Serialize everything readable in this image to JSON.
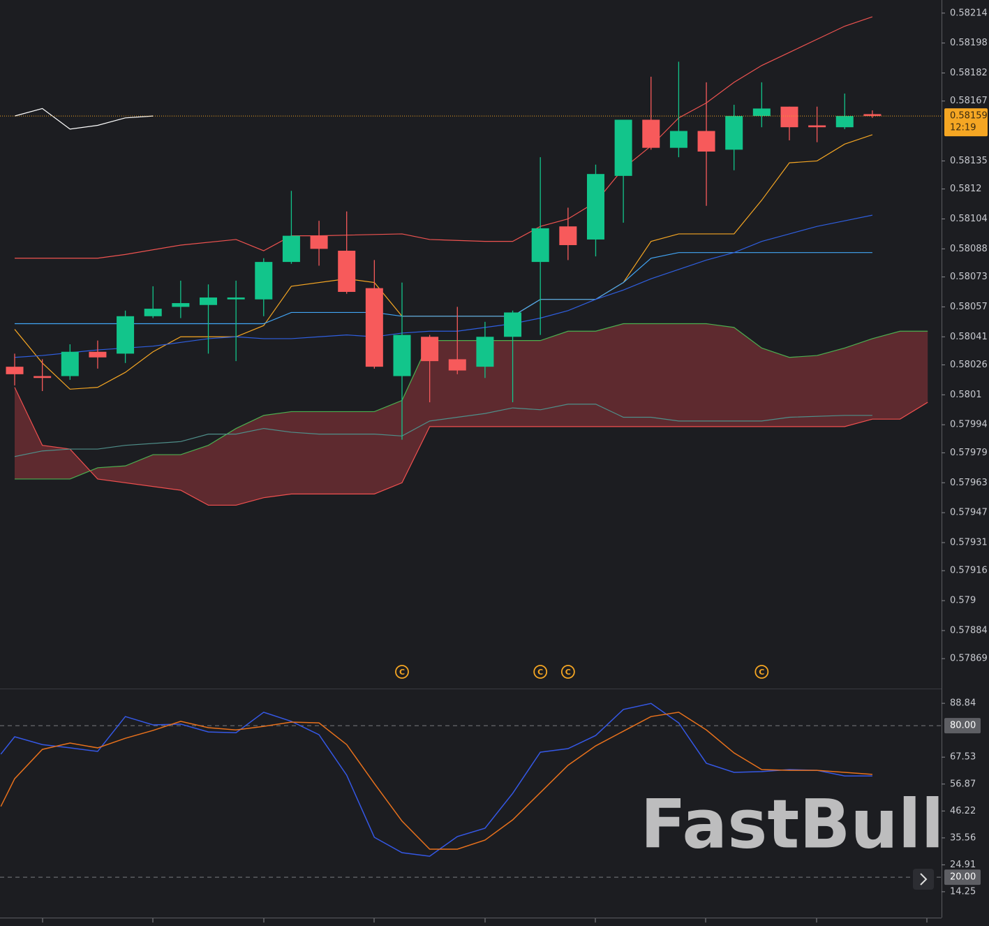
{
  "watermark": "FastBull",
  "chart_data": [
    {
      "type": "candlestick",
      "xlim": [
        -0.53,
        33.5
      ],
      "ylim": [
        0.57853,
        0.58221
      ],
      "yticks": [
        0.58214,
        0.58198,
        0.58182,
        0.58167,
        0.58135,
        0.5812,
        0.58104,
        0.58088,
        0.58073,
        0.58057,
        0.58041,
        0.58026,
        0.5801,
        0.57994,
        0.57979,
        0.57963,
        0.57947,
        0.57931,
        0.57916,
        0.579,
        0.57884,
        0.57869
      ],
      "up_color": "#12c58b",
      "down_color": "#f75a5b",
      "open": [
        0.58025,
        0.5802,
        0.5802,
        0.58033,
        0.58032,
        0.58052,
        0.58057,
        0.58058,
        0.58061,
        0.58061,
        0.58081,
        0.58095,
        0.58087,
        0.58067,
        0.5802,
        0.58041,
        0.58029,
        0.58025,
        0.58041,
        0.58081,
        0.581,
        0.58093,
        0.58127,
        0.58157,
        0.58142,
        0.58151,
        0.58141,
        0.58159,
        0.58164,
        0.58154,
        0.58153,
        0.5816
      ],
      "high": [
        0.58032,
        0.58029,
        0.58037,
        0.58039,
        0.58055,
        0.58068,
        0.58071,
        0.58069,
        0.58071,
        0.58083,
        0.58119,
        0.58103,
        0.58108,
        0.58082,
        0.5807,
        0.58042,
        0.58057,
        0.58049,
        0.58055,
        0.58137,
        0.5811,
        0.58133,
        0.58157,
        0.5818,
        0.58188,
        0.58177,
        0.58165,
        0.58177,
        0.58164,
        0.58164,
        0.58171,
        0.58162
      ],
      "low": [
        0.58015,
        0.58012,
        0.58018,
        0.58024,
        0.58027,
        0.58051,
        0.58051,
        0.58032,
        0.58028,
        0.58052,
        0.5808,
        0.58079,
        0.58064,
        0.58024,
        0.57986,
        0.58006,
        0.58021,
        0.58019,
        0.58006,
        0.58042,
        0.58082,
        0.58084,
        0.58102,
        0.58141,
        0.58137,
        0.58111,
        0.5813,
        0.58153,
        0.58146,
        0.58145,
        0.58152,
        0.58158
      ],
      "close": [
        0.58021,
        0.58019,
        0.58033,
        0.5803,
        0.58052,
        0.58056,
        0.58059,
        0.58062,
        0.58062,
        0.58081,
        0.58095,
        0.58088,
        0.58065,
        0.58025,
        0.58042,
        0.58028,
        0.58023,
        0.58041,
        0.58054,
        0.58099,
        0.5809,
        0.58128,
        0.58157,
        0.58142,
        0.58151,
        0.5814,
        0.58159,
        0.58163,
        0.58153,
        0.58153,
        0.58159,
        0.58159
      ],
      "cloud": {
        "color": "#6a2d31",
        "span_a": {
          "color": "#4caf50",
          "x": [
            0,
            2,
            3,
            4,
            5,
            6,
            7,
            8,
            9,
            10,
            13,
            14,
            15,
            18,
            19,
            20,
            21,
            22,
            25,
            26,
            27,
            28,
            29,
            30,
            31,
            32,
            33
          ],
          "values": [
            0.57965,
            0.57965,
            0.57971,
            0.57972,
            0.57978,
            0.57978,
            0.57983,
            0.57992,
            0.57999,
            0.58001,
            0.58001,
            0.58007,
            0.58039,
            0.58039,
            0.58039,
            0.58044,
            0.58044,
            0.58048,
            0.58048,
            0.58046,
            0.58035,
            0.5803,
            0.58031,
            0.58035,
            0.5804,
            0.58044,
            0.58044
          ]
        },
        "span_b": {
          "color": "#f0504f",
          "x": [
            0,
            1,
            2,
            3,
            6,
            7,
            8,
            9,
            10,
            13,
            14,
            15,
            30,
            31,
            32,
            33
          ],
          "values": [
            0.58014,
            0.57983,
            0.57981,
            0.57965,
            0.57959,
            0.57951,
            0.57951,
            0.57955,
            0.57957,
            0.57957,
            0.57963,
            0.57993,
            0.57993,
            0.57997,
            0.57997,
            0.58006
          ]
        }
      },
      "lines": [
        {
          "color": "#ef5350",
          "x": [
            0,
            1,
            3,
            4,
            6,
            8,
            9,
            10,
            11,
            14,
            15,
            17,
            18,
            19,
            20,
            21,
            22,
            23,
            24,
            25,
            26,
            27,
            28,
            29,
            30,
            31
          ],
          "values": [
            0.58083,
            0.58083,
            0.58083,
            0.58085,
            0.5809,
            0.58093,
            0.58087,
            0.58095,
            0.58095,
            0.58096,
            0.58093,
            0.58092,
            0.58092,
            0.581,
            0.58104,
            0.58113,
            0.58131,
            0.58143,
            0.58158,
            0.58166,
            0.58177,
            0.58186,
            0.58193,
            0.582,
            0.58207,
            0.58212
          ]
        },
        {
          "color": "#f5a623",
          "x": [
            0,
            1,
            2,
            3,
            4,
            5,
            6,
            8,
            9,
            10,
            12,
            13,
            14,
            18,
            19,
            21,
            22,
            23,
            24,
            26,
            27,
            28,
            29,
            30,
            31
          ],
          "values": [
            0.58045,
            0.58027,
            0.58013,
            0.58014,
            0.58022,
            0.58033,
            0.58041,
            0.58041,
            0.58047,
            0.58068,
            0.58072,
            0.5807,
            0.58052,
            0.58052,
            0.58061,
            0.58061,
            0.5807,
            0.58092,
            0.58096,
            0.58096,
            0.58114,
            0.58134,
            0.58135,
            0.58144,
            0.58149
          ]
        },
        {
          "color": "#42a5f5",
          "x": [
            0,
            9,
            10,
            13,
            14,
            18,
            19,
            21,
            22,
            23,
            24,
            31
          ],
          "values": [
            0.58048,
            0.58048,
            0.58054,
            0.58054,
            0.58052,
            0.58052,
            0.58061,
            0.58061,
            0.5807,
            0.58083,
            0.58086,
            0.58086
          ]
        },
        {
          "color": "#2f5fe0",
          "x": [
            0,
            1,
            3,
            5,
            6,
            7,
            8,
            9,
            10,
            11,
            12,
            13,
            14,
            15,
            16,
            17,
            18,
            19,
            20,
            21,
            22,
            23,
            24,
            25,
            26,
            27,
            28,
            29,
            30,
            31
          ],
          "values": [
            0.5803,
            0.58031,
            0.58034,
            0.58036,
            0.58038,
            0.5804,
            0.58041,
            0.5804,
            0.5804,
            0.58041,
            0.58042,
            0.58041,
            0.58043,
            0.58044,
            0.58044,
            0.58046,
            0.58048,
            0.58051,
            0.58055,
            0.58061,
            0.58066,
            0.58072,
            0.58077,
            0.58082,
            0.58086,
            0.58092,
            0.58096,
            0.581,
            0.58103,
            0.58106
          ]
        },
        {
          "color": "#4f8f8a",
          "x": [
            0,
            1,
            2,
            3,
            4,
            6,
            7,
            8,
            9,
            10,
            11,
            13,
            14,
            15,
            16,
            17,
            18,
            19,
            20,
            21,
            22,
            23,
            24,
            26,
            27,
            28,
            30,
            31
          ],
          "values": [
            0.57977,
            0.5798,
            0.57981,
            0.57981,
            0.57983,
            0.57985,
            0.57989,
            0.57989,
            0.57992,
            0.5799,
            0.57989,
            0.57989,
            0.57988,
            0.57996,
            0.57998,
            0.58,
            0.58003,
            0.58002,
            0.58005,
            0.58005,
            0.57998,
            0.57998,
            0.57996,
            0.57996,
            0.57996,
            0.57998,
            0.57999,
            0.57999
          ]
        },
        {
          "color": "#ffffff",
          "x": [
            0,
            1,
            2,
            3,
            4,
            5
          ],
          "values": [
            0.58159,
            0.58163,
            0.58152,
            0.58154,
            0.58158,
            0.58159
          ]
        }
      ],
      "last_price": 0.58159,
      "last_price_color": "#f5a623",
      "countdown": "12:19",
      "markers": {
        "x": [
          14,
          19,
          20,
          27
        ],
        "label": "C",
        "color": "#f5a623"
      }
    },
    {
      "type": "line",
      "xlim": [
        -0.53,
        33.5
      ],
      "ylim": [
        4.0,
        94.4
      ],
      "yticks": [
        88.84,
        67.53,
        56.87,
        46.22,
        35.56,
        24.91,
        14.25
      ],
      "levels": [
        {
          "value": 80,
          "label": "80.00"
        },
        {
          "value": 20,
          "label": "20.00"
        }
      ],
      "series": [
        {
          "color": "#3558e6",
          "x": [
            -0.5,
            0,
            1,
            2,
            3,
            4,
            5,
            6,
            7,
            8,
            9,
            10,
            11,
            12,
            13,
            14,
            15,
            16,
            17,
            18,
            19,
            20,
            21,
            22,
            23,
            24,
            25,
            26,
            27,
            28,
            29,
            30,
            31
          ],
          "values": [
            68.7,
            75.6,
            72.5,
            71.2,
            69.8,
            83.6,
            80.3,
            80.6,
            77.5,
            77.2,
            85.3,
            81.7,
            76.4,
            60.4,
            35.8,
            29.7,
            28.3,
            36.1,
            39.4,
            53.2,
            69.5,
            70.9,
            76.1,
            86.4,
            88.8,
            81.1,
            65.1,
            61.5,
            61.8,
            62.6,
            62.3,
            60.1,
            60.1
          ]
        },
        {
          "color": "#e8711c",
          "x": [
            -0.5,
            0,
            1,
            2,
            3,
            4,
            5,
            6,
            7,
            8,
            9,
            10,
            11,
            12,
            13,
            14,
            15,
            16,
            17,
            18,
            19,
            20,
            21,
            22,
            23,
            24,
            25,
            26,
            27,
            28,
            29,
            30,
            31
          ],
          "values": [
            48.0,
            59.0,
            70.6,
            73.1,
            71.2,
            75.0,
            78.1,
            81.7,
            79.2,
            78.3,
            79.7,
            81.4,
            81.1,
            72.5,
            57.1,
            42.2,
            31.1,
            31.1,
            34.7,
            42.7,
            53.5,
            64.3,
            72.0,
            77.8,
            83.6,
            85.3,
            78.3,
            69.2,
            62.6,
            62.3,
            62.3,
            61.5,
            60.7
          ]
        }
      ]
    }
  ]
}
